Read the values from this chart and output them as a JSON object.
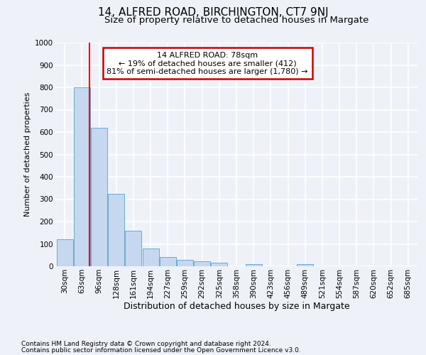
{
  "title1": "14, ALFRED ROAD, BIRCHINGTON, CT7 9NJ",
  "title2": "Size of property relative to detached houses in Margate",
  "xlabel": "Distribution of detached houses by size in Margate",
  "ylabel": "Number of detached properties",
  "categories": [
    "30sqm",
    "63sqm",
    "96sqm",
    "128sqm",
    "161sqm",
    "194sqm",
    "227sqm",
    "259sqm",
    "292sqm",
    "325sqm",
    "358sqm",
    "390sqm",
    "423sqm",
    "456sqm",
    "489sqm",
    "521sqm",
    "554sqm",
    "587sqm",
    "620sqm",
    "652sqm",
    "685sqm"
  ],
  "values": [
    120,
    800,
    620,
    325,
    160,
    78,
    40,
    27,
    22,
    17,
    0,
    10,
    0,
    0,
    8,
    0,
    0,
    0,
    0,
    0,
    0
  ],
  "bar_color": "#c5d8ef",
  "bar_edge_color": "#6aaad4",
  "red_line_x": 1.45,
  "annotation_text": "14 ALFRED ROAD: 78sqm\n← 19% of detached houses are smaller (412)\n81% of semi-detached houses are larger (1,780) →",
  "annotation_box_color": "white",
  "annotation_box_edge_color": "#cc0000",
  "ylim": [
    0,
    1000
  ],
  "yticks": [
    0,
    100,
    200,
    300,
    400,
    500,
    600,
    700,
    800,
    900,
    1000
  ],
  "footnote1": "Contains HM Land Registry data © Crown copyright and database right 2024.",
  "footnote2": "Contains public sector information licensed under the Open Government Licence v3.0.",
  "background_color": "#eef2f8",
  "axes_background_color": "#eef2f8",
  "grid_color": "white",
  "title1_fontsize": 11,
  "title2_fontsize": 9.5,
  "xlabel_fontsize": 9,
  "ylabel_fontsize": 8,
  "tick_fontsize": 7.5,
  "annotation_fontsize": 8,
  "footnote_fontsize": 6.5
}
